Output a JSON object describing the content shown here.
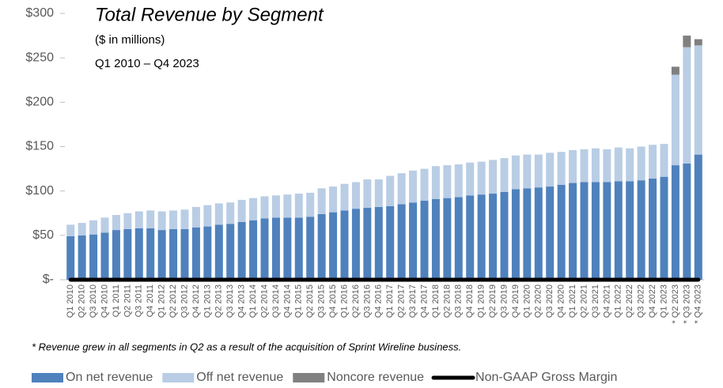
{
  "chart_data": {
    "type": "bar",
    "stacked": true,
    "title": "Total Revenue by Segment",
    "subtitle": "($ in millions)",
    "period": "Q1 2010 – Q4 2023",
    "annotation": "*  Revenue grew in all segments in Q2 as a result of  the acquisition of Sprint Wireline business.",
    "categories": [
      "Q1 2010",
      "Q2 2010",
      "Q3 2010",
      "Q4 2010",
      "Q1 2011",
      "Q2 2011",
      "Q3 2011",
      "Q4 2011",
      "Q1 2012",
      "Q2 2012",
      "Q3 2012",
      "Q4 2012",
      "Q1 2013",
      "Q2 2013",
      "Q3 2013",
      "Q4 2013",
      "Q1 2014",
      "Q2 2014",
      "Q3 2014",
      "Q4 2014",
      "Q1 2015",
      "Q2 2015",
      "Q3 2015",
      "Q4 2015",
      "Q1 2016",
      "Q2 2016",
      "Q3 2016",
      "Q4 2016",
      "Q1 2017",
      "Q2 2017",
      "Q3 2017",
      "Q4 2017",
      "Q1 2018",
      "Q2 2018",
      "Q3 2018",
      "Q4 2018",
      "Q1 2019",
      "Q2 2019",
      "Q3 2019",
      "Q4 2019",
      "Q1 2020",
      "Q2 2020",
      "Q3 2020",
      "Q4 2020",
      "Q1 2021",
      "Q2 2021",
      "Q3 2021",
      "Q4 2021",
      "Q1 2022",
      "Q2 2022",
      "Q3 2022",
      "Q4 2022",
      "Q1 2023",
      "* Q2 2023",
      "* Q3 2023",
      "* Q4 2023"
    ],
    "series": [
      {
        "name": "On net revenue",
        "color": "#4f81bd",
        "values": [
          49,
          50,
          51,
          53,
          56,
          57,
          58,
          58,
          56,
          57,
          57,
          59,
          60,
          62,
          63,
          65,
          67,
          69,
          70,
          70,
          70,
          71,
          74,
          76,
          78,
          80,
          81,
          82,
          83,
          85,
          87,
          89,
          91,
          92,
          93,
          95,
          96,
          97,
          99,
          102,
          103,
          104,
          105,
          107,
          109,
          110,
          110,
          110,
          111,
          111,
          112,
          114,
          116,
          129,
          131,
          141
        ]
      },
      {
        "name": "Off net revenue",
        "color": "#b9cde5",
        "values": [
          13,
          14,
          16,
          17,
          17,
          18,
          19,
          20,
          21,
          21,
          22,
          23,
          24,
          24,
          24,
          25,
          25,
          25,
          25,
          26,
          27,
          27,
          29,
          29,
          30,
          30,
          32,
          31,
          34,
          35,
          36,
          36,
          37,
          37,
          37,
          37,
          37,
          38,
          38,
          38,
          38,
          37,
          38,
          37,
          37,
          37,
          38,
          37,
          38,
          37,
          38,
          38,
          37,
          102,
          131,
          123
        ]
      },
      {
        "name": "Noncore revenue",
        "color": "#808080",
        "values": [
          0,
          0,
          0,
          0,
          0,
          0,
          0,
          0,
          0,
          0,
          0,
          0,
          0,
          0,
          0,
          0,
          0,
          0,
          0,
          0,
          0,
          0,
          0,
          0,
          0,
          0,
          0,
          0,
          0,
          0,
          0,
          0,
          0,
          0,
          0,
          0,
          0,
          0,
          0,
          0,
          0,
          0,
          0,
          0,
          0,
          0,
          0,
          0,
          0,
          0,
          0,
          0,
          0,
          9,
          13,
          7
        ]
      },
      {
        "name": "Non-GAAP Gross Margin",
        "type": "line",
        "color": "#000000",
        "values": [
          0,
          0,
          0,
          0,
          0,
          0,
          0,
          0,
          0,
          0,
          0,
          0,
          0,
          0,
          0,
          0,
          0,
          0,
          0,
          0,
          0,
          0,
          0,
          0,
          0,
          0,
          0,
          0,
          0,
          0,
          0,
          0,
          0,
          0,
          0,
          0,
          0,
          0,
          0,
          0,
          0,
          0,
          0,
          0,
          0,
          0,
          0,
          0,
          0,
          0,
          0,
          0,
          0,
          0,
          0,
          0
        ]
      }
    ],
    "ylim": [
      0,
      300
    ],
    "yticks": [
      {
        "value": 0,
        "label": "$-"
      },
      {
        "value": 50,
        "label": "$50"
      },
      {
        "value": 100,
        "label": "$100"
      },
      {
        "value": 150,
        "label": "$150"
      },
      {
        "value": 200,
        "label": "$200"
      },
      {
        "value": 250,
        "label": "$250"
      },
      {
        "value": 300,
        "label": "$300"
      }
    ],
    "legend": "bottom"
  }
}
